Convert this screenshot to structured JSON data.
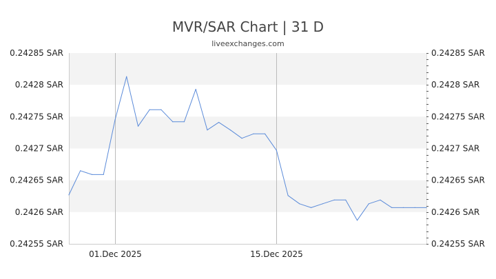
{
  "chart_data": {
    "type": "line",
    "title": "MVR/SAR Chart | 31 D",
    "subtitle": "liveexchanges.com",
    "xlabel": "",
    "ylabel": "",
    "ylim": [
      0.24255,
      0.24285
    ],
    "y_ticks": [
      "0.24285 SAR",
      "0.2428 SAR",
      "0.24275 SAR",
      "0.2427 SAR",
      "0.24265 SAR",
      "0.2426 SAR",
      "0.24255 SAR"
    ],
    "y_tick_values": [
      0.24285,
      0.2428,
      0.24275,
      0.2427,
      0.24265,
      0.2426,
      0.24255
    ],
    "x_ticks": [
      {
        "label": "01.Dec 2025",
        "index": 4
      },
      {
        "label": "15.Dec 2025",
        "index": 18
      }
    ],
    "grid": true,
    "line_color": "#5b8bd9",
    "x": [
      "2025-11-27",
      "2025-11-28",
      "2025-11-29",
      "2025-11-30",
      "2025-12-01",
      "2025-12-02",
      "2025-12-03",
      "2025-12-04",
      "2025-12-05",
      "2025-12-06",
      "2025-12-07",
      "2025-12-08",
      "2025-12-09",
      "2025-12-10",
      "2025-12-11",
      "2025-12-12",
      "2025-12-13",
      "2025-12-14",
      "2025-12-15",
      "2025-12-16",
      "2025-12-17",
      "2025-12-18",
      "2025-12-19",
      "2025-12-20",
      "2025-12-21",
      "2025-12-22",
      "2025-12-23",
      "2025-12-24",
      "2025-12-25",
      "2025-12-26",
      "2025-12-27",
      "2025-12-28"
    ],
    "series": [
      {
        "values": [
          0.242627,
          0.242665,
          0.242659,
          0.242659,
          0.242745,
          0.242813,
          0.242735,
          0.242761,
          0.242761,
          0.242742,
          0.242742,
          0.242793,
          0.242729,
          0.242741,
          0.242729,
          0.242716,
          0.242723,
          0.242723,
          0.242697,
          0.242626,
          0.242613,
          0.242607,
          0.242613,
          0.242619,
          0.242619,
          0.242587,
          0.242613,
          0.242619,
          0.242607,
          0.242607,
          0.242607,
          0.242607
        ]
      }
    ]
  }
}
